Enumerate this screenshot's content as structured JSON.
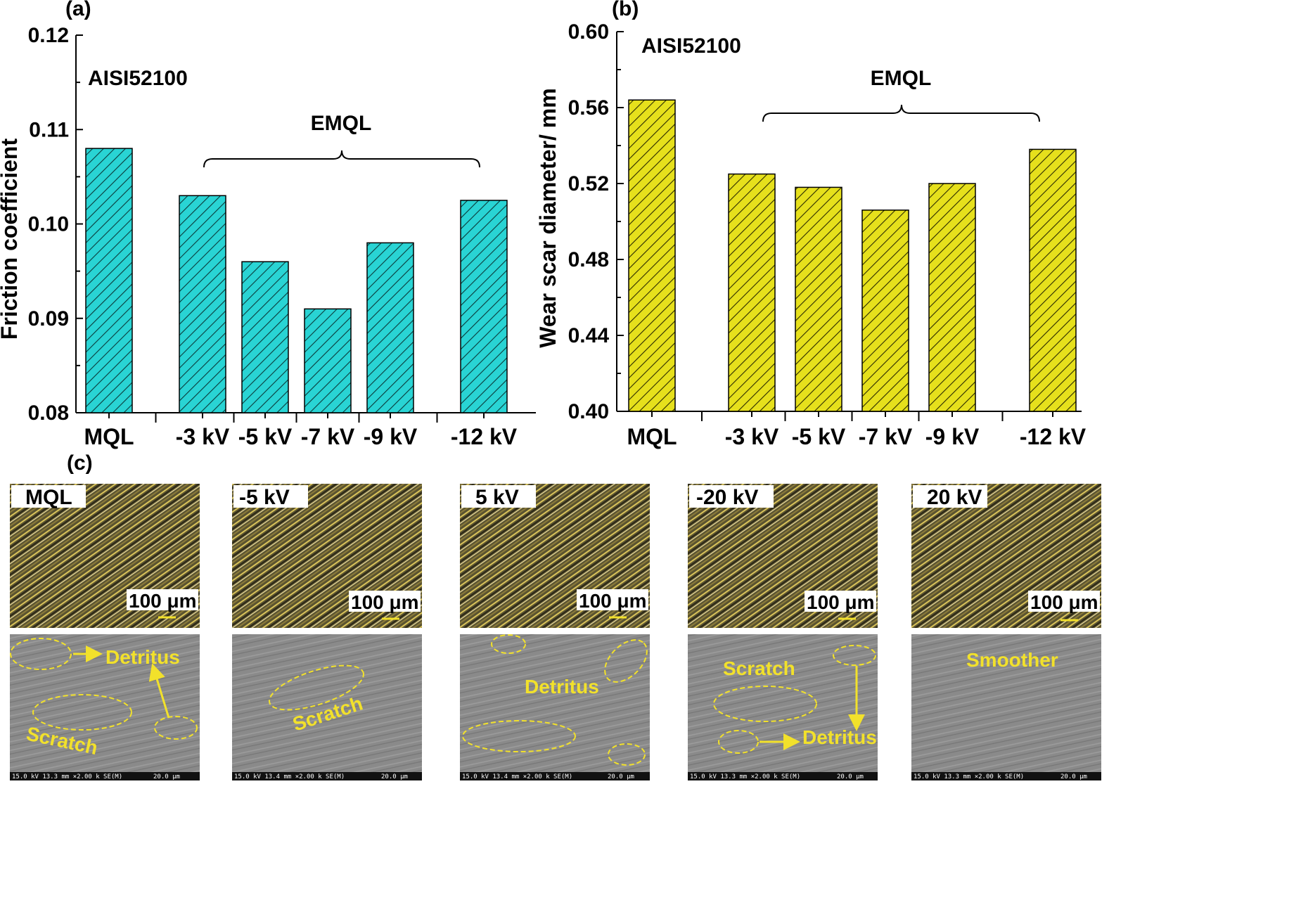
{
  "chart_data": [
    {
      "panel": "(a)",
      "type": "bar",
      "title": "",
      "note": "AISI52100",
      "group_label": "EMQL",
      "xlabel": "",
      "ylabel": "Friction coefficient",
      "ylim": [
        0.08,
        0.12
      ],
      "yticks": [
        "0.08",
        "0.09",
        "0.10",
        "0.11",
        "0.12"
      ],
      "categories": [
        "MQL",
        "-3 kV",
        "-5 kV",
        "-7 kV",
        "-9 kV",
        "-12 kV"
      ],
      "values": [
        0.108,
        0.103,
        0.096,
        0.091,
        0.098,
        0.1025
      ],
      "color": "#29d4d4"
    },
    {
      "panel": "(b)",
      "type": "bar",
      "title": "",
      "note": "AISI52100",
      "group_label": "EMQL",
      "xlabel": "",
      "ylabel": "Wear scar diameter/ mm",
      "ylim": [
        0.4,
        0.6
      ],
      "yticks": [
        "0.40",
        "0.44",
        "0.48",
        "0.52",
        "0.56",
        "0.60"
      ],
      "categories": [
        "MQL",
        "-3 kV",
        "-5 kV",
        "-7 kV",
        "-9 kV",
        "-12 kV"
      ],
      "values": [
        0.564,
        0.525,
        0.518,
        0.506,
        0.52,
        0.538
      ],
      "color": "#e6e01c"
    }
  ],
  "panel_c": {
    "label": "(c)",
    "scale_bar": "100 μm",
    "columns": [
      {
        "label": "MQL",
        "annotations": [
          "Detritus",
          "Scratch"
        ],
        "footer": "15.0 kV 13.3 mm ×2.00 k  SE(M)",
        "footer_scale": "20.0 μm"
      },
      {
        "label": "-5 kV",
        "annotations": [
          "Scratch"
        ],
        "footer": "15.0 kV 13.4 mm ×2.00 k  SE(M)",
        "footer_scale": "20.0 μm"
      },
      {
        "label": "5 kV",
        "annotations": [
          "Detritus"
        ],
        "footer": "15.0 kV 13.4 mm ×2.00 k  SE(M)",
        "footer_scale": "20.0 μm"
      },
      {
        "label": "-20 kV",
        "annotations": [
          "Scratch",
          "Detritus"
        ],
        "footer": "15.0 kV 13.3 mm ×2.00 k  SE(M)",
        "footer_scale": "20.0 μm"
      },
      {
        "label": "20 kV",
        "annotations": [
          "Smoother"
        ],
        "footer": "15.0 kV 13.3 mm ×2.00 k  SE(M)",
        "footer_scale": "20.0 μm"
      }
    ]
  }
}
